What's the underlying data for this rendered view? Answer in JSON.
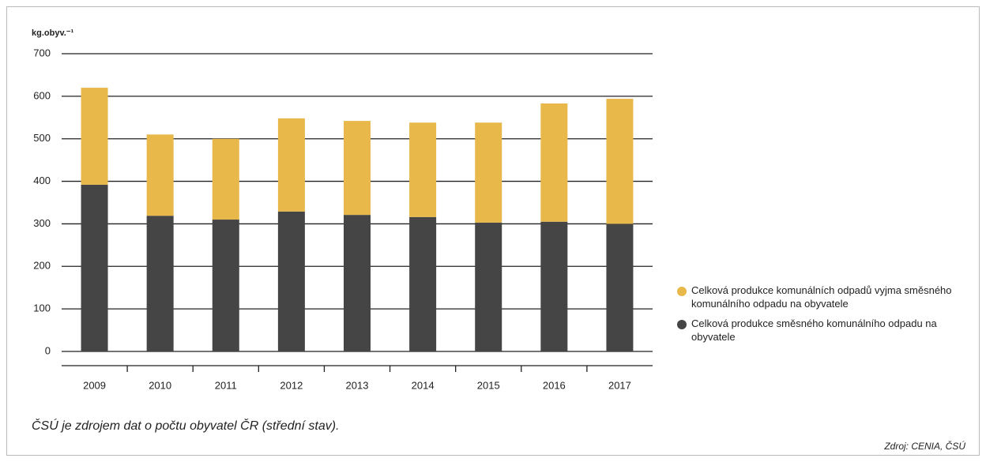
{
  "chart_data": {
    "type": "stacked-bar",
    "y_label": "kg.obyv.⁻¹",
    "categories": [
      "2009",
      "2010",
      "2011",
      "2012",
      "2013",
      "2014",
      "2015",
      "2016",
      "2017"
    ],
    "series": [
      {
        "name": "Celková produkce směsného komunálního odpadu na obyvatele",
        "color": "#454545",
        "values": [
          392,
          319,
          310,
          329,
          321,
          316,
          303,
          305,
          300
        ]
      },
      {
        "name": "Celková produkce komunálních odpadů vyjma směsného komunálního odpadu na obyvatele",
        "color": "#e8b84a",
        "values": [
          228,
          191,
          190,
          219,
          221,
          222,
          235,
          278,
          294
        ]
      }
    ],
    "ylim": [
      0,
      700
    ],
    "yticks": [
      0,
      100,
      200,
      300,
      400,
      500,
      600,
      700
    ],
    "grid": true,
    "note": "ČSÚ je zdrojem dat o počtu obyvatel ČR (střední stav).",
    "source": "Zdroj: CENIA, ČSÚ"
  }
}
